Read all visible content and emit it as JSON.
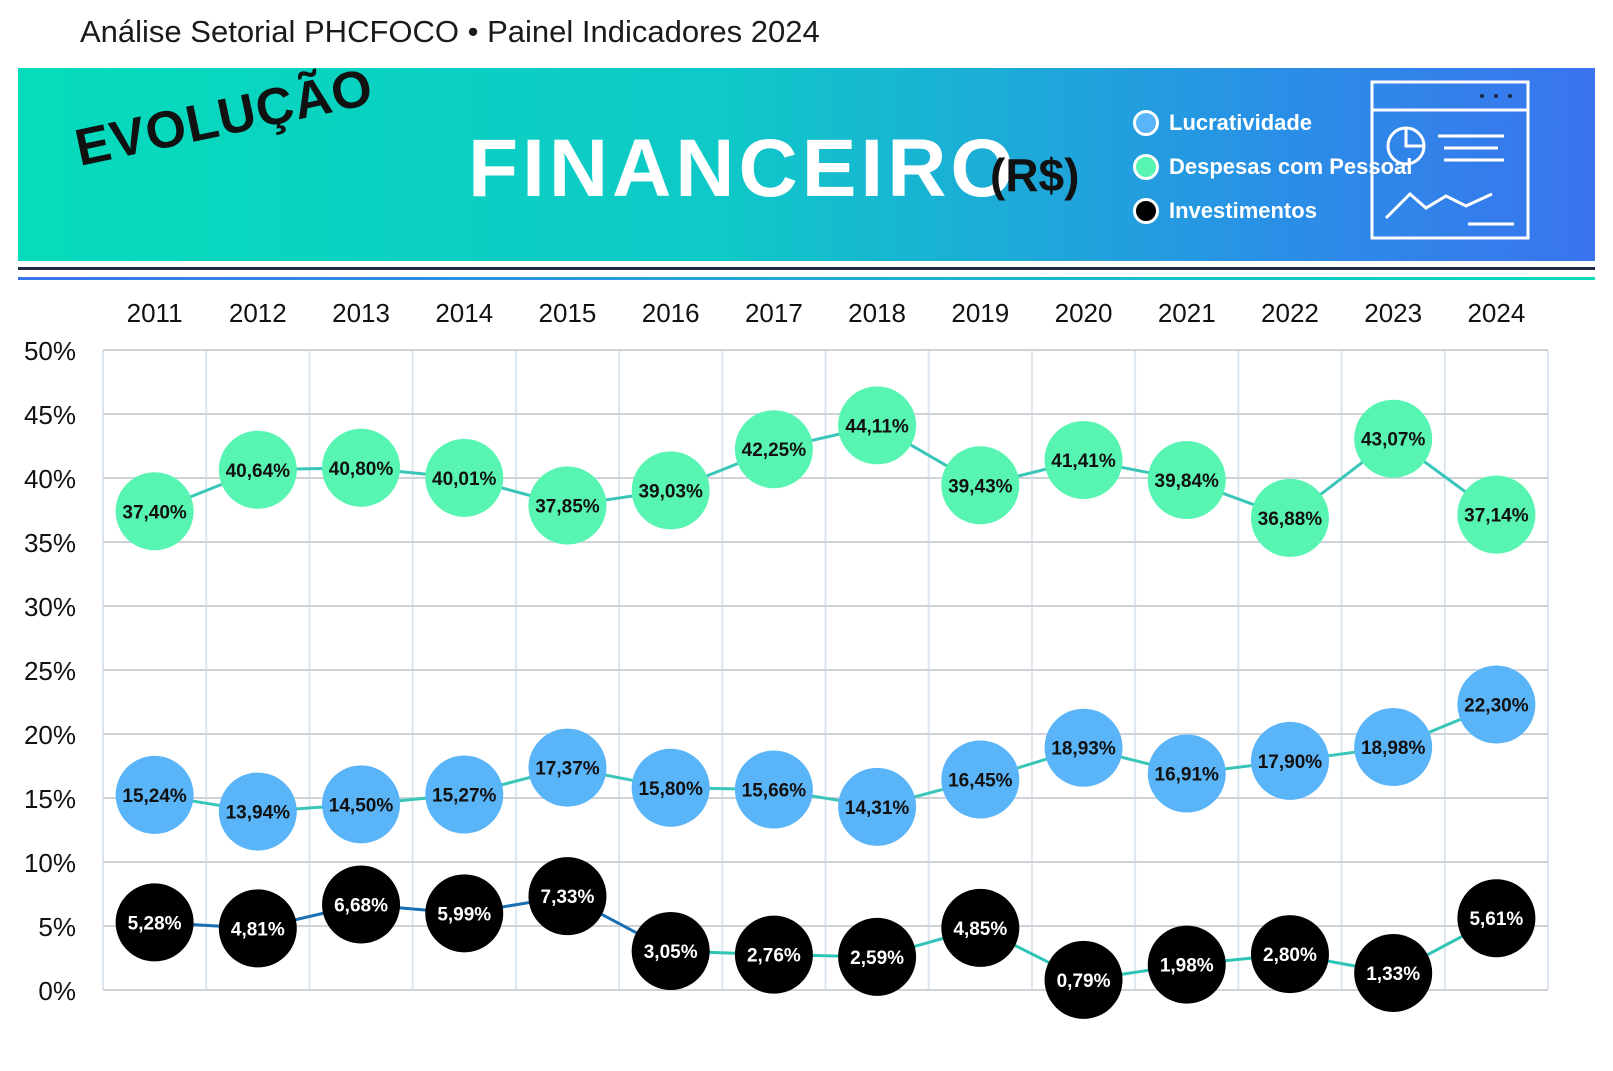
{
  "header": {
    "caption": "Análise Setorial PHCFOCO • Painel Indicadores 2024",
    "label_left": "EVOLUÇÃO",
    "title": "FINANCEIRO",
    "currency": "(R$)"
  },
  "colors": {
    "lucratividade": "#5ab4f8",
    "despesas": "#58f5b2",
    "investimentos": "#000000",
    "grid": "#dde6ef",
    "banner_start": "#06dcbb",
    "banner_end": "#3a74ee"
  },
  "icons": {
    "dashboard": "dashboard-chart-icon"
  },
  "chart_data": {
    "type": "line",
    "x": [
      "2011",
      "2012",
      "2013",
      "2014",
      "2015",
      "2016",
      "2017",
      "2018",
      "2019",
      "2020",
      "2021",
      "2022",
      "2023",
      "2024"
    ],
    "ylim": [
      0,
      50
    ],
    "yticks": [
      "0%",
      "5%",
      "10%",
      "15%",
      "20%",
      "25%",
      "30%",
      "35%",
      "40%",
      "45%",
      "50%"
    ],
    "grid": true,
    "legend_position": "top-right",
    "series": [
      {
        "name": "Lucratividade",
        "key": "lucratividade",
        "values": [
          15.24,
          13.94,
          14.5,
          15.27,
          17.37,
          15.8,
          15.66,
          14.31,
          16.45,
          18.93,
          16.91,
          17.9,
          18.98,
          22.3
        ],
        "labels": [
          "15,24%",
          "13,94%",
          "14,50%",
          "15,27%",
          "17,37%",
          "15,80%",
          "15,66%",
          "14,31%",
          "16,45%",
          "18,93%",
          "16,91%",
          "17,90%",
          "18,98%",
          "22,30%"
        ]
      },
      {
        "name": "Despesas com Pessoal",
        "key": "despesas",
        "values": [
          37.4,
          40.64,
          40.8,
          40.01,
          37.85,
          39.03,
          42.25,
          44.11,
          39.43,
          41.41,
          39.84,
          36.88,
          43.07,
          37.14
        ],
        "labels": [
          "37,40%",
          "40,64%",
          "40,80%",
          "40,01%",
          "37,85%",
          "39,03%",
          "42,25%",
          "44,11%",
          "39,43%",
          "41,41%",
          "39,84%",
          "36,88%",
          "43,07%",
          "37,14%"
        ]
      },
      {
        "name": "Investimentos",
        "key": "investimentos",
        "values": [
          5.28,
          4.81,
          6.68,
          5.99,
          7.33,
          3.05,
          2.76,
          2.59,
          4.85,
          0.79,
          1.98,
          2.8,
          1.33,
          5.61
        ],
        "labels": [
          "5,28%",
          "4,81%",
          "6,68%",
          "5,99%",
          "7,33%",
          "3,05%",
          "2,76%",
          "2,59%",
          "4,85%",
          "0,79%",
          "1,98%",
          "2,80%",
          "1,33%",
          "5,61%"
        ]
      }
    ]
  }
}
